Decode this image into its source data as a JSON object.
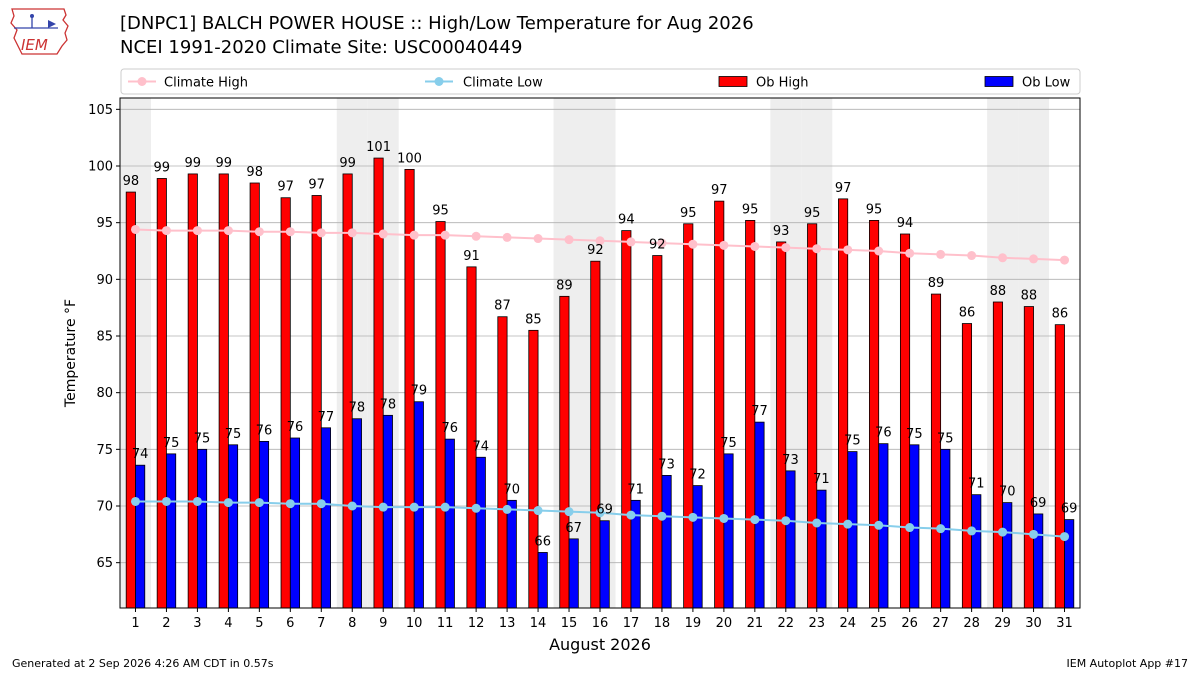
{
  "header": {
    "title_line1": "[DNPC1] BALCH POWER HOUSE :: High/Low Temperature for Aug 2026",
    "title_line2": "NCEI 1991-2020 Climate Site: USC00040449",
    "logo_text": "IEM"
  },
  "footer": {
    "left": "Generated at 2 Sep 2026 4:26 AM CDT in 0.57s",
    "right": "IEM Autoplot App #17"
  },
  "colors": {
    "ob_high": "#ff0000",
    "ob_low": "#0000ff",
    "climate_high": "#ffc0cb",
    "climate_low": "#87ceeb",
    "weekend_band": "#eeeeee",
    "grid": "#b0b0b0"
  },
  "chart_data": {
    "type": "bar",
    "xlabel": "August 2026",
    "ylabel": "Temperature °F",
    "ylim": [
      61,
      106
    ],
    "yticks": [
      65,
      70,
      75,
      80,
      85,
      90,
      95,
      100,
      105
    ],
    "grid": true,
    "legend_placement": "top",
    "categories": [
      "1",
      "2",
      "3",
      "4",
      "5",
      "6",
      "7",
      "8",
      "9",
      "10",
      "11",
      "12",
      "13",
      "14",
      "15",
      "16",
      "17",
      "18",
      "19",
      "20",
      "21",
      "22",
      "23",
      "24",
      "25",
      "26",
      "27",
      "28",
      "29",
      "30",
      "31"
    ],
    "weekend_days": [
      1,
      8,
      9,
      15,
      16,
      22,
      23,
      29,
      30
    ],
    "series": [
      {
        "name": "Ob High",
        "kind": "bar",
        "values": [
          97.7,
          98.9,
          99.3,
          99.3,
          98.5,
          97.2,
          97.4,
          99.3,
          100.7,
          99.7,
          95.1,
          91.1,
          86.7,
          85.5,
          88.5,
          91.6,
          94.3,
          92.1,
          94.9,
          96.9,
          95.2,
          93.3,
          94.9,
          97.1,
          95.2,
          94.0,
          88.7,
          86.1,
          88.0,
          87.6,
          86.0
        ],
        "labels": [
          98,
          99,
          99,
          99,
          98,
          97,
          97,
          99,
          101,
          100,
          95,
          91,
          87,
          85,
          89,
          92,
          94,
          92,
          95,
          97,
          95,
          93,
          95,
          97,
          95,
          94,
          89,
          86,
          88,
          88,
          86
        ]
      },
      {
        "name": "Ob Low",
        "kind": "bar",
        "values": [
          73.6,
          74.6,
          75.0,
          75.4,
          75.7,
          76.0,
          76.9,
          77.7,
          78.0,
          79.2,
          75.9,
          74.3,
          70.5,
          65.9,
          67.1,
          68.7,
          70.5,
          72.7,
          71.8,
          74.6,
          77.4,
          73.1,
          71.4,
          74.8,
          75.5,
          75.4,
          75.0,
          71.0,
          70.3,
          69.3,
          68.8
        ],
        "labels": [
          74,
          75,
          75,
          75,
          76,
          76,
          77,
          78,
          78,
          79,
          76,
          74,
          70,
          66,
          67,
          69,
          71,
          73,
          72,
          75,
          77,
          73,
          71,
          75,
          76,
          75,
          75,
          71,
          70,
          69,
          69
        ]
      },
      {
        "name": "Climate High",
        "kind": "line",
        "values": [
          94.4,
          94.3,
          94.3,
          94.3,
          94.2,
          94.2,
          94.1,
          94.1,
          94.0,
          93.9,
          93.9,
          93.8,
          93.7,
          93.6,
          93.5,
          93.4,
          93.3,
          93.2,
          93.1,
          93.0,
          92.9,
          92.8,
          92.7,
          92.6,
          92.5,
          92.3,
          92.2,
          92.1,
          91.9,
          91.8,
          91.7
        ]
      },
      {
        "name": "Climate Low",
        "kind": "line",
        "values": [
          70.4,
          70.4,
          70.4,
          70.3,
          70.3,
          70.2,
          70.2,
          70.0,
          69.9,
          69.9,
          69.9,
          69.8,
          69.7,
          69.6,
          69.5,
          69.4,
          69.2,
          69.1,
          69.0,
          68.9,
          68.8,
          68.7,
          68.5,
          68.4,
          68.3,
          68.1,
          68.0,
          67.8,
          67.7,
          67.5,
          67.3
        ]
      }
    ]
  }
}
